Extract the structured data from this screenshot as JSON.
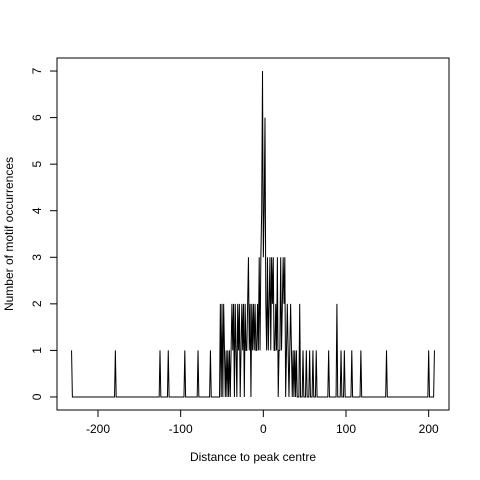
{
  "chart_data": {
    "type": "line",
    "xlabel": "Distance to peak centre",
    "ylabel": "Number of motif occurrences",
    "color": "#000000",
    "x": [
      -232,
      -231,
      -180,
      -179,
      -178,
      -126,
      -125,
      -124,
      -116,
      -115,
      -114,
      -96,
      -95,
      -94,
      -80,
      -79,
      -78,
      -65,
      -64,
      -63,
      -53,
      -52,
      -51,
      -50,
      -49,
      -48,
      -47,
      -46,
      -45,
      -44,
      -43,
      -42,
      -41,
      -40,
      -39,
      -38,
      -37,
      -36,
      -35,
      -34,
      -33,
      -32,
      -31,
      -30,
      -29,
      -28,
      -27,
      -26,
      -25,
      -24,
      -23,
      -22,
      -21,
      -20,
      -19,
      -18,
      -17,
      -16,
      -15,
      -14,
      -13,
      -12,
      -11,
      -10,
      -9,
      -8,
      -7,
      -6,
      -5,
      -4,
      -3,
      -2,
      -1,
      0,
      1,
      2,
      3,
      4,
      5,
      6,
      7,
      8,
      9,
      10,
      11,
      12,
      13,
      14,
      15,
      16,
      17,
      18,
      19,
      20,
      21,
      22,
      23,
      24,
      25,
      26,
      27,
      28,
      29,
      30,
      31,
      32,
      33,
      34,
      35,
      36,
      37,
      38,
      39,
      40,
      41,
      43,
      44,
      45,
      47,
      48,
      49,
      51,
      52,
      53,
      55,
      56,
      57,
      59,
      60,
      61,
      63,
      64,
      65,
      78,
      79,
      80,
      88,
      89,
      90,
      93,
      94,
      95,
      97,
      98,
      99,
      106,
      107,
      108,
      117,
      118,
      119,
      148,
      149,
      150,
      199,
      200,
      201,
      206,
      207
    ],
    "values": [
      1,
      0,
      0,
      1,
      0,
      0,
      1,
      0,
      0,
      1,
      0,
      0,
      1,
      0,
      0,
      1,
      0,
      0,
      1,
      0,
      0,
      2,
      0,
      2,
      0,
      2,
      1,
      0,
      1,
      0,
      1,
      0,
      1,
      0,
      1,
      2,
      1,
      2,
      0,
      2,
      1,
      0,
      2,
      1,
      2,
      0,
      1,
      2,
      1,
      2,
      0,
      2,
      1,
      1,
      2,
      3,
      1,
      2,
      0,
      2,
      1,
      2,
      1,
      2,
      1,
      1,
      2,
      1,
      3,
      1,
      3,
      4,
      7,
      3,
      4,
      6,
      2,
      1,
      3,
      1,
      2,
      3,
      1,
      3,
      2,
      3,
      1,
      1,
      2,
      1,
      3,
      0,
      1,
      1,
      3,
      1,
      2,
      3,
      2,
      3,
      0,
      1,
      2,
      1,
      0,
      1,
      2,
      1,
      0,
      1,
      0,
      1,
      0,
      1,
      0,
      0,
      2,
      0,
      0,
      1,
      0,
      0,
      1,
      0,
      0,
      1,
      0,
      0,
      1,
      0,
      0,
      1,
      0,
      0,
      1,
      0,
      0,
      2,
      0,
      0,
      1,
      0,
      0,
      1,
      0,
      0,
      1,
      0,
      0,
      1,
      0,
      0,
      1,
      0,
      0,
      1,
      0,
      0,
      1
    ],
    "xlim": [
      -249.6,
      224.6
    ],
    "ylim": [
      -0.28,
      7.28
    ],
    "xticks": [
      -200,
      -100,
      0,
      100,
      200
    ],
    "yticks": [
      0,
      1,
      2,
      3,
      4,
      5,
      6,
      7
    ]
  }
}
